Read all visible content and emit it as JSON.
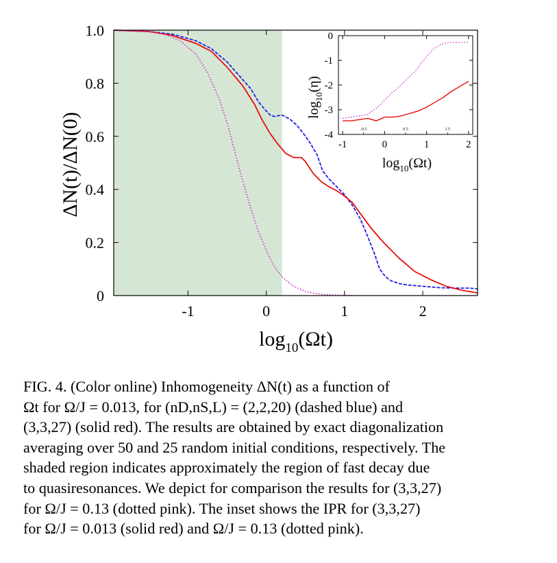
{
  "figure": {
    "main": {
      "ylabel_parts": [
        "ΔN(t)/ΔN(0)"
      ],
      "xlabel": {
        "pre": "log",
        "sub": "10",
        "post": "(Ωt)"
      },
      "xticks": [
        -1,
        0,
        1,
        2
      ],
      "yticks": [
        0,
        0.2,
        0.4,
        0.6,
        0.8,
        1.0
      ],
      "ytick_labels": [
        "0",
        "0.2",
        "0.4",
        "0.6",
        "0.8",
        "1.0"
      ]
    },
    "inset": {
      "ylabel": {
        "pre": "log",
        "sub": "10",
        "post": "(η)"
      },
      "xlabel": {
        "pre": "log",
        "sub": "10",
        "post": "(Ωt)"
      },
      "xticks_major": [
        -1,
        0,
        1,
        2
      ],
      "xticks_minor": [
        -0.5,
        0.5,
        1.5
      ],
      "xtick_minor_labels": [
        "-0.5",
        "0.5",
        "1.5"
      ],
      "yticks": [
        0,
        -1,
        -2,
        -3,
        -4
      ]
    }
  },
  "chart_data": [
    {
      "type": "line",
      "xlim": [
        -1.95,
        2.7
      ],
      "ylim": [
        0,
        1.0
      ],
      "grid": false,
      "shaded_region": {
        "x_from": -1.95,
        "x_to": 0.2,
        "color": "#d5e7d4",
        "description": "fast decay due to quasiresonances"
      },
      "series": [
        {
          "style": "dashed",
          "color": "#1e1ee6",
          "x": [
            -1.95,
            -1.5,
            -1.2,
            -0.9,
            -0.7,
            -0.5,
            -0.35,
            -0.2,
            -0.1,
            0.0,
            0.05,
            0.1,
            0.2,
            0.3,
            0.38,
            0.45,
            0.55,
            0.65,
            0.72,
            0.8,
            0.9,
            1.0,
            1.1,
            1.2,
            1.3,
            1.38,
            1.45,
            1.5,
            1.55,
            1.6,
            1.7,
            1.8,
            2.0,
            2.2,
            2.4,
            2.6,
            2.7
          ],
          "values": [
            1.0,
            0.995,
            0.985,
            0.96,
            0.93,
            0.88,
            0.83,
            0.78,
            0.73,
            0.695,
            0.68,
            0.675,
            0.68,
            0.665,
            0.645,
            0.62,
            0.58,
            0.53,
            0.47,
            0.44,
            0.41,
            0.38,
            0.34,
            0.29,
            0.22,
            0.16,
            0.1,
            0.08,
            0.065,
            0.055,
            0.045,
            0.04,
            0.035,
            0.03,
            0.028,
            0.028,
            0.025
          ]
        },
        {
          "style": "solid",
          "color": "#e60c0c",
          "x": [
            -1.95,
            -1.5,
            -1.2,
            -0.9,
            -0.7,
            -0.5,
            -0.3,
            -0.15,
            -0.05,
            0.05,
            0.15,
            0.25,
            0.35,
            0.45,
            0.5,
            0.6,
            0.7,
            0.8,
            0.9,
            1.0,
            1.1,
            1.2,
            1.35,
            1.5,
            1.7,
            1.9,
            2.1,
            2.3,
            2.5,
            2.7
          ],
          "values": [
            1.0,
            0.995,
            0.98,
            0.95,
            0.92,
            0.86,
            0.79,
            0.72,
            0.66,
            0.61,
            0.57,
            0.535,
            0.52,
            0.52,
            0.505,
            0.46,
            0.43,
            0.41,
            0.395,
            0.375,
            0.35,
            0.31,
            0.25,
            0.2,
            0.14,
            0.09,
            0.06,
            0.035,
            0.02,
            0.01
          ]
        },
        {
          "style": "dotted",
          "color": "#cc33cc",
          "x": [
            -1.95,
            -1.5,
            -1.3,
            -1.1,
            -0.9,
            -0.75,
            -0.6,
            -0.5,
            -0.4,
            -0.3,
            -0.2,
            -0.1,
            0.0,
            0.1,
            0.2,
            0.35,
            0.5,
            0.7,
            0.9,
            1.1
          ],
          "values": [
            1.0,
            0.995,
            0.985,
            0.96,
            0.91,
            0.84,
            0.74,
            0.65,
            0.54,
            0.43,
            0.33,
            0.24,
            0.17,
            0.11,
            0.07,
            0.035,
            0.015,
            0.005,
            0.001,
            0.0
          ]
        }
      ]
    },
    {
      "type": "line",
      "xlim": [
        -1.1,
        2.1
      ],
      "ylim": [
        -4,
        0
      ],
      "grid": false,
      "series": [
        {
          "style": "solid",
          "color": "#e60c0c",
          "x": [
            -1.0,
            -0.8,
            -0.6,
            -0.4,
            -0.2,
            0.0,
            0.2,
            0.4,
            0.6,
            0.8,
            1.0,
            1.2,
            1.4,
            1.6,
            1.8,
            2.0
          ],
          "values": [
            -3.45,
            -3.45,
            -3.4,
            -3.35,
            -3.45,
            -3.3,
            -3.3,
            -3.25,
            -3.15,
            -3.05,
            -2.9,
            -2.7,
            -2.5,
            -2.25,
            -2.05,
            -1.85
          ]
        },
        {
          "style": "dotted",
          "color": "#cc33cc",
          "x": [
            -1.0,
            -0.8,
            -0.6,
            -0.4,
            -0.3,
            -0.2,
            -0.1,
            0.0,
            0.15,
            0.3,
            0.45,
            0.6,
            0.75,
            0.9,
            1.05,
            1.2,
            1.35,
            1.5,
            1.7,
            1.9,
            2.0
          ],
          "values": [
            -3.35,
            -3.3,
            -3.25,
            -3.2,
            -3.05,
            -2.95,
            -2.8,
            -2.6,
            -2.35,
            -2.15,
            -1.9,
            -1.65,
            -1.4,
            -1.05,
            -0.75,
            -0.5,
            -0.35,
            -0.28,
            -0.27,
            -0.27,
            -0.27
          ]
        }
      ]
    }
  ],
  "caption": {
    "lines": [
      "FIG. 4. (Color online) Inhomogeneity ΔN(t) as a function of",
      "Ωt for Ω/J = 0.013, for (nD,nS,L) = (2,2,20) (dashed blue) and",
      "(3,3,27) (solid red). The results are obtained by exact diagonalization",
      "averaging over 50 and 25 random initial conditions, respectively. The",
      "shaded region indicates approximately the region of fast decay due",
      "to quasiresonances. We depict for comparison the results for (3,3,27)",
      "for Ω/J = 0.13 (dotted pink). The inset shows the IPR for (3,3,27)",
      "for Ω/J = 0.013 (solid red) and Ω/J = 0.13 (dotted pink)."
    ]
  }
}
